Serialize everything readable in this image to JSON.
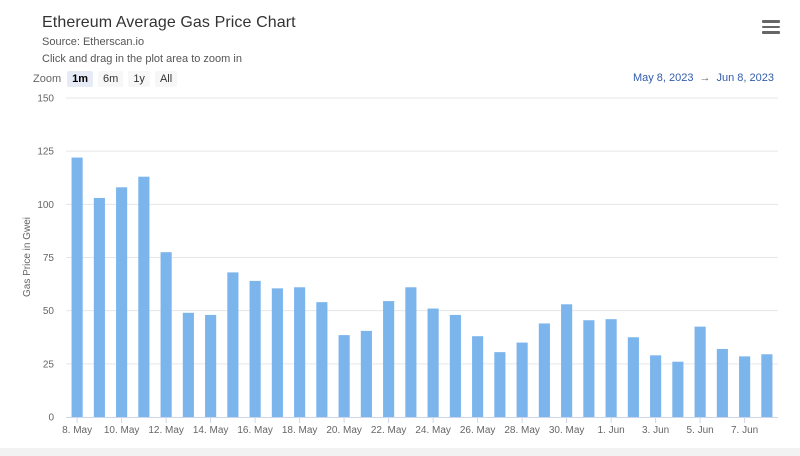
{
  "header": {
    "title": "Ethereum Average Gas Price Chart",
    "source": "Source: Etherscan.io",
    "hint": "Click and drag in the plot area to zoom in"
  },
  "zoom": {
    "label": "Zoom",
    "buttons": [
      "1m",
      "6m",
      "1y",
      "All"
    ],
    "active": "1m"
  },
  "range": {
    "from": "May 8, 2023",
    "arrow": "→",
    "to": "Jun 8, 2023"
  },
  "icons": {
    "menu": "hamburger-menu-icon"
  },
  "colors": {
    "bar": "#7cb5ec",
    "grid": "#e6e6e6",
    "axis": "#ccd6eb"
  },
  "chart_data": {
    "type": "bar",
    "ylabel": "Gas Price in Gwei",
    "ylim": [
      0,
      150
    ],
    "yticks": [
      0,
      25,
      50,
      75,
      100,
      125,
      150
    ],
    "grid": true,
    "categories": [
      "8. May",
      "9. May",
      "10. May",
      "11. May",
      "12. May",
      "13. May",
      "14. May",
      "15. May",
      "16. May",
      "17. May",
      "18. May",
      "19. May",
      "20. May",
      "21. May",
      "22. May",
      "23. May",
      "24. May",
      "25. May",
      "26. May",
      "27. May",
      "28. May",
      "29. May",
      "30. May",
      "31. May",
      "1. Jun",
      "2. Jun",
      "3. Jun",
      "4. Jun",
      "5. Jun",
      "6. Jun",
      "7. Jun",
      "8. Jun"
    ],
    "xtick_labels": [
      "8. May",
      "10. May",
      "12. May",
      "14. May",
      "16. May",
      "18. May",
      "20. May",
      "22. May",
      "24. May",
      "26. May",
      "28. May",
      "30. May",
      "1. Jun",
      "3. Jun",
      "5. Jun",
      "7. Jun"
    ],
    "values": [
      122,
      103,
      108,
      113,
      77.5,
      49,
      48,
      68,
      64,
      60.5,
      61,
      54,
      38.5,
      40.5,
      54.5,
      61,
      51,
      48,
      38,
      30.5,
      35,
      44,
      53,
      45.5,
      46,
      37.5,
      29,
      26,
      42.5,
      32,
      28.5,
      29.5
    ]
  }
}
